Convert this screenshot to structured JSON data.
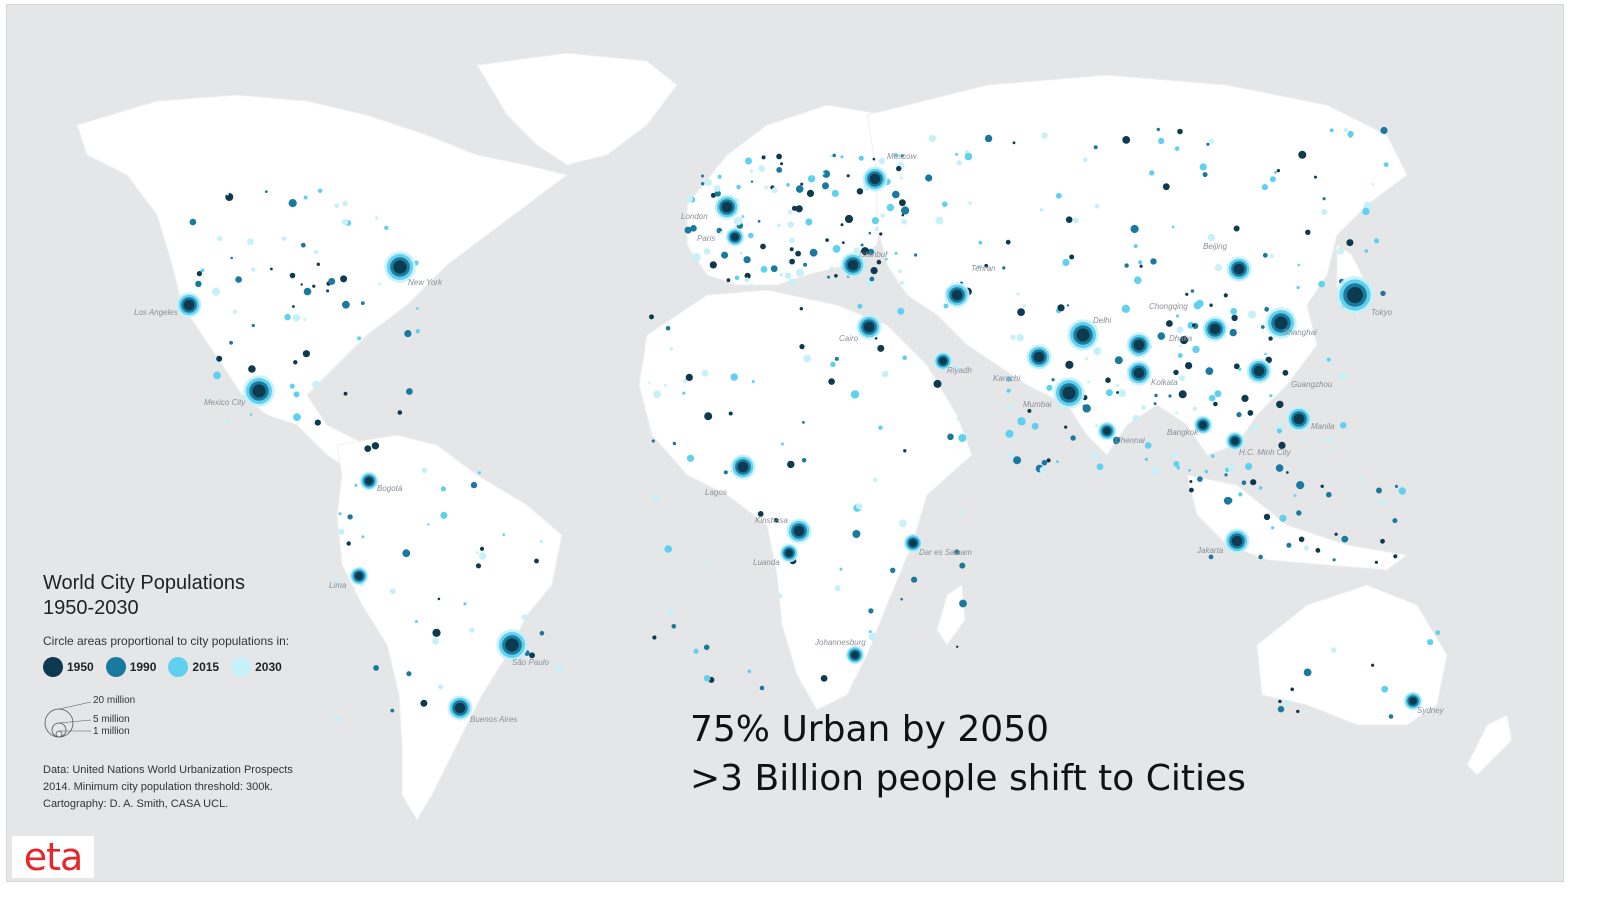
{
  "legend": {
    "title_line1": "World City Populations",
    "title_line2": "1950-2030",
    "subtitle": "Circle areas proportional to city populations in:",
    "keys": [
      {
        "label": "1950",
        "color": "#0d3a4e"
      },
      {
        "label": "1990",
        "color": "#1a7a9e"
      },
      {
        "label": "2015",
        "color": "#5fd0ee"
      },
      {
        "label": "2030",
        "color": "#c6f1f8"
      }
    ],
    "sizes": [
      "20 million",
      "5 million",
      "1 million"
    ]
  },
  "credits": {
    "line1": "Data: United Nations World Urbanization Prospects",
    "line2": "2014. Minimum city population threshold: 300k.",
    "line3": "Cartography: D. A. Smith, CASA UCL."
  },
  "headline": {
    "line1": "75% Urban by 2050",
    "line2": ">3 Billion people shift to Cities"
  },
  "logo": "eta",
  "colors": {
    "land": "#ffffff",
    "ocean": "#e5e6e8",
    "c1950": "#0d3a4e",
    "c1990": "#1a7a9e",
    "c2015": "#5fd0ee",
    "c2030": "#c6f1f8",
    "brand": "#e6262b"
  },
  "cities": [
    {
      "name": "Los Angeles",
      "size": 3
    },
    {
      "name": "New York",
      "size": 4
    },
    {
      "name": "Mexico City",
      "size": 4
    },
    {
      "name": "Bogotá",
      "size": 2
    },
    {
      "name": "Lima",
      "size": 2
    },
    {
      "name": "São Paulo",
      "size": 4
    },
    {
      "name": "Buenos Aires",
      "size": 3
    },
    {
      "name": "London",
      "size": 3
    },
    {
      "name": "Paris",
      "size": 2
    },
    {
      "name": "Moscow",
      "size": 3
    },
    {
      "name": "Istanbul",
      "size": 3
    },
    {
      "name": "Cairo",
      "size": 3
    },
    {
      "name": "Tehran",
      "size": 3
    },
    {
      "name": "Riyadh",
      "size": 2
    },
    {
      "name": "Karachi",
      "size": 3
    },
    {
      "name": "Delhi",
      "size": 4
    },
    {
      "name": "Mumbai",
      "size": 4
    },
    {
      "name": "Dhaka",
      "size": 3
    },
    {
      "name": "Kolkata",
      "size": 3
    },
    {
      "name": "Chennai",
      "size": 2
    },
    {
      "name": "Beijing",
      "size": 3
    },
    {
      "name": "Chongqing",
      "size": 3
    },
    {
      "name": "Shanghai",
      "size": 4
    },
    {
      "name": "Tokyo",
      "size": 5
    },
    {
      "name": "Guangzhou",
      "size": 3
    },
    {
      "name": "Manila",
      "size": 3
    },
    {
      "name": "Bangkok",
      "size": 2
    },
    {
      "name": "H.C. Minh City",
      "size": 2
    },
    {
      "name": "Jakarta",
      "size": 3
    },
    {
      "name": "Lagos",
      "size": 3
    },
    {
      "name": "Kinshasa",
      "size": 3
    },
    {
      "name": "Luanda",
      "size": 2
    },
    {
      "name": "Dar es Salaam",
      "size": 2
    },
    {
      "name": "Johannesburg",
      "size": 2
    },
    {
      "name": "Sydney",
      "size": 2
    }
  ]
}
